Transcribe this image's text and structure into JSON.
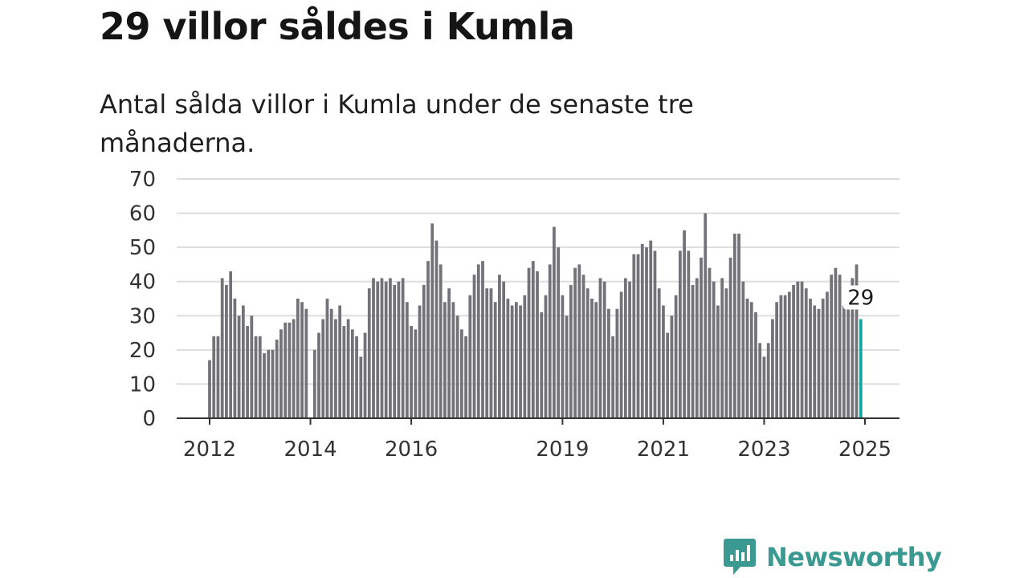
{
  "header": {
    "title": "29 villor såldes i Kumla",
    "subtitle": "Antal sålda villor i Kumla under de senaste tre månaderna."
  },
  "branding": {
    "name": "Newsworthy",
    "icon": "bar-chart-speech-bubble-icon",
    "color": "#3a9a92"
  },
  "colors": {
    "bars": "#737278",
    "highlight": "#16a399",
    "grid": "#dddddd",
    "axis": "#333333"
  },
  "chart_data": {
    "type": "bar",
    "x_start": "2012-01",
    "x_end": "2025-01",
    "x_ticks": [
      "2012",
      "2014",
      "2016",
      "2019",
      "2021",
      "2023",
      "2025"
    ],
    "ylim": [
      0,
      70
    ],
    "y_ticks": [
      0,
      10,
      20,
      30,
      40,
      50,
      60,
      70
    ],
    "grid": true,
    "values": [
      17,
      24,
      24,
      41,
      39,
      43,
      35,
      30,
      33,
      27,
      30,
      24,
      24,
      19,
      20,
      20,
      23,
      26,
      28,
      28,
      29,
      35,
      34,
      32,
      0,
      20,
      25,
      29,
      35,
      32,
      29,
      33,
      27,
      29,
      26,
      24,
      18,
      25,
      38,
      41,
      40,
      41,
      40,
      41,
      39,
      40,
      41,
      34,
      27,
      26,
      33,
      39,
      46,
      57,
      52,
      45,
      34,
      38,
      34,
      30,
      26,
      24,
      36,
      42,
      45,
      46,
      38,
      38,
      34,
      42,
      40,
      35,
      33,
      34,
      33,
      36,
      44,
      46,
      43,
      31,
      36,
      45,
      56,
      50,
      36,
      30,
      39,
      44,
      45,
      42,
      38,
      35,
      34,
      41,
      40,
      32,
      24,
      32,
      37,
      41,
      40,
      48,
      48,
      51,
      50,
      52,
      49,
      38,
      33,
      25,
      30,
      36,
      49,
      55,
      49,
      39,
      41,
      47,
      60,
      44,
      40,
      33,
      41,
      38,
      47,
      54,
      54,
      40,
      35,
      34,
      31,
      22,
      18,
      22,
      29,
      34,
      36,
      36,
      37,
      39,
      40,
      40,
      38,
      35,
      33,
      32,
      35,
      37,
      42,
      44,
      42,
      33,
      35,
      41,
      45,
      29
    ],
    "highlight_label": "29"
  }
}
